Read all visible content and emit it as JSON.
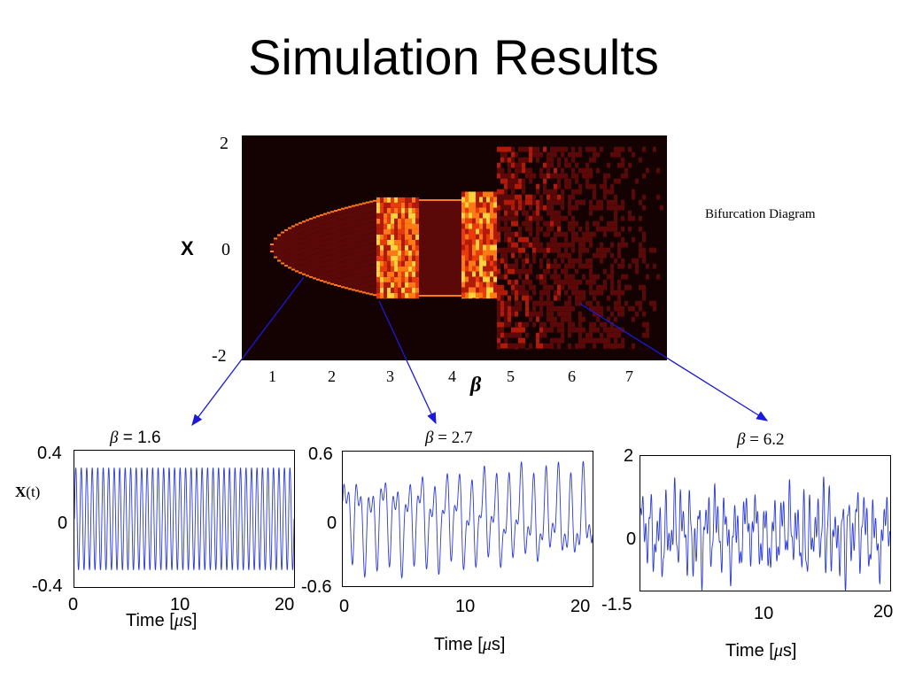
{
  "title": "Simulation Results",
  "chart_data": [
    {
      "type": "heatmap",
      "title": "Bifurcation Diagram",
      "xlabel": "β",
      "ylabel": "X",
      "xticks": [
        "1",
        "2",
        "3",
        "4",
        "5",
        "6",
        "7"
      ],
      "yticks": [
        "2",
        "0",
        "-2"
      ],
      "xlim": [
        0.5,
        7.7
      ],
      "ylim": [
        -2,
        2
      ],
      "colormap": [
        "#140202",
        "#5a0808",
        "#b01a06",
        "#e83a0a",
        "#ff7a14",
        "#ffd23c"
      ],
      "regions": [
        {
          "beta_range": [
            1.0,
            2.8
          ],
          "behavior": "period-1 oscillation, amplitude grows from 0 to 0.85"
        },
        {
          "beta_range": [
            2.8,
            3.5
          ],
          "behavior": "chaotic band, X in [-0.9, 0.9]"
        },
        {
          "beta_range": [
            3.5,
            4.2
          ],
          "behavior": "periodic window, amplitude about 0.85"
        },
        {
          "beta_range": [
            4.2,
            4.8
          ],
          "behavior": "chaotic band, X in [-0.9, 1.0]"
        },
        {
          "beta_range": [
            4.8,
            7.7
          ],
          "behavior": "broad chaos, X in [-1.8, 1.8]"
        }
      ],
      "annotations": [
        "Bifurcation Diagram"
      ]
    },
    {
      "type": "line",
      "title": "β = 1.6",
      "xlabel": "Time [μs]",
      "ylabel": "X(t)",
      "xlim": [
        0,
        20
      ],
      "ylim": [
        -0.4,
        0.4
      ],
      "xticks": [
        "0",
        "10",
        "20"
      ],
      "yticks": [
        "0.4",
        "0",
        "-0.4"
      ],
      "signal": {
        "form": "periodic",
        "amplitude": 0.3,
        "cycles": 40,
        "color": "#2a3ad6"
      }
    },
    {
      "type": "line",
      "title": "β = 2.7",
      "xlabel": "Time [μs]",
      "ylabel": "",
      "xlim": [
        0,
        20
      ],
      "ylim": [
        -0.6,
        0.6
      ],
      "xticks": [
        "0",
        "10",
        "20"
      ],
      "yticks": [
        "0.6",
        "0",
        "-0.6"
      ],
      "signal": {
        "form": "quasi-periodic",
        "amplitude": 0.5,
        "cycles": 20,
        "color": "#2a3ad6"
      }
    },
    {
      "type": "line",
      "title": "β = 6.2",
      "xlabel": "Time [μs]",
      "ylabel": "",
      "xlim": [
        0,
        20
      ],
      "ylim": [
        -1.5,
        2
      ],
      "xticks": [
        "10",
        "20"
      ],
      "yticks": [
        "2",
        "0",
        "-1.5"
      ],
      "signal": {
        "form": "chaotic",
        "amplitude": 1.5,
        "cycles": 30,
        "color": "#2a3ad6"
      }
    }
  ],
  "labels": {
    "bif_title": "Bifurcation Diagram",
    "bif_ylabel": "X",
    "bif_xlabel": "β",
    "ts_ylabel_main": "X",
    "ts_ylabel_t": "(t)",
    "beta_sym": "β",
    "eq": " = ",
    "p1_beta": "1.6",
    "p2_beta": "2.7",
    "p3_beta": "6.2",
    "time_pre": "Time [",
    "mu": "μ",
    "time_post": "s]"
  },
  "colors": {
    "arrow": "#1a1ad8",
    "line": "#2a3ad6"
  }
}
